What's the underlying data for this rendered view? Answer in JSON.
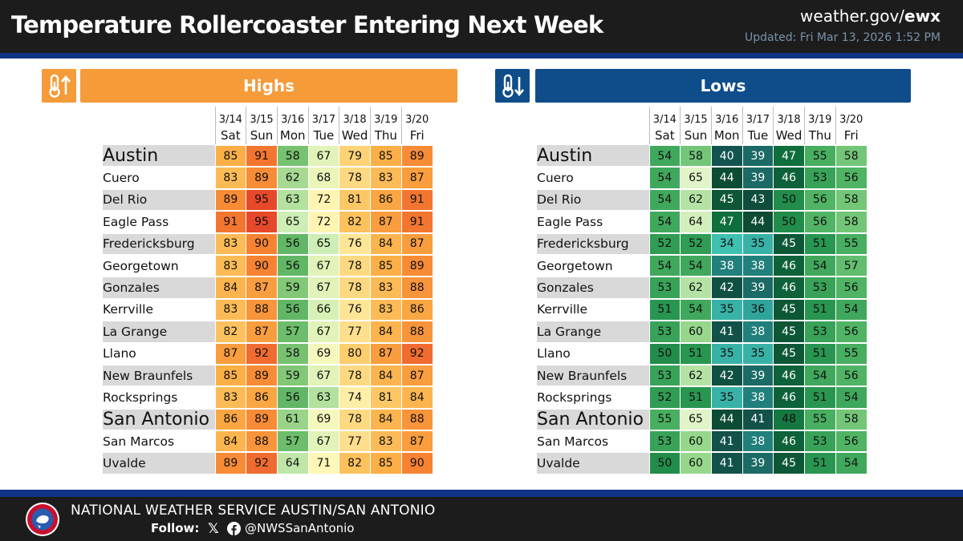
{
  "header": {
    "title": "Temperature Rollercoaster Entering Next Week",
    "site_prefix": "weather.gov/",
    "site_bold": "ewx",
    "updated": "Updated: Fri Mar 13, 2026 1:52 PM"
  },
  "highs_label": "Highs",
  "lows_label": "Lows",
  "icons": {
    "highs": "thermometer-up-icon",
    "lows": "thermometer-down-icon"
  },
  "dates": [
    "3/14",
    "3/15",
    "3/16",
    "3/17",
    "3/18",
    "3/19",
    "3/20"
  ],
  "days": [
    "Sat",
    "Sun",
    "Mon",
    "Tue",
    "Wed",
    "Thu",
    "Fri"
  ],
  "cities": [
    {
      "name": "Austin",
      "big": true,
      "highs": [
        85,
        91,
        58,
        67,
        79,
        85,
        89
      ],
      "lows": [
        54,
        58,
        40,
        39,
        47,
        55,
        58
      ]
    },
    {
      "name": "Cuero",
      "big": false,
      "highs": [
        83,
        89,
        62,
        68,
        78,
        83,
        87
      ],
      "lows": [
        54,
        65,
        44,
        39,
        46,
        53,
        56
      ]
    },
    {
      "name": "Del Rio",
      "big": false,
      "highs": [
        89,
        95,
        63,
        72,
        81,
        86,
        91
      ],
      "lows": [
        54,
        62,
        45,
        43,
        50,
        56,
        58
      ]
    },
    {
      "name": "Eagle Pass",
      "big": false,
      "highs": [
        91,
        95,
        65,
        72,
        82,
        87,
        91
      ],
      "lows": [
        54,
        64,
        47,
        44,
        50,
        56,
        58
      ]
    },
    {
      "name": "Fredericksburg",
      "big": false,
      "highs": [
        83,
        90,
        56,
        65,
        76,
        84,
        87
      ],
      "lows": [
        52,
        52,
        34,
        35,
        45,
        51,
        55
      ]
    },
    {
      "name": "Georgetown",
      "big": false,
      "highs": [
        83,
        90,
        56,
        67,
        78,
        85,
        89
      ],
      "lows": [
        54,
        54,
        38,
        38,
        46,
        54,
        57
      ]
    },
    {
      "name": "Gonzales",
      "big": false,
      "highs": [
        84,
        87,
        59,
        67,
        78,
        83,
        88
      ],
      "lows": [
        53,
        62,
        42,
        39,
        46,
        53,
        56
      ]
    },
    {
      "name": "Kerrville",
      "big": false,
      "highs": [
        83,
        88,
        56,
        66,
        76,
        83,
        86
      ],
      "lows": [
        51,
        54,
        35,
        36,
        45,
        51,
        54
      ]
    },
    {
      "name": "La Grange",
      "big": false,
      "highs": [
        82,
        87,
        57,
        67,
        77,
        84,
        88
      ],
      "lows": [
        53,
        60,
        41,
        38,
        45,
        53,
        56
      ]
    },
    {
      "name": "Llano",
      "big": false,
      "highs": [
        87,
        92,
        58,
        69,
        80,
        87,
        92
      ],
      "lows": [
        50,
        51,
        35,
        35,
        45,
        51,
        55
      ]
    },
    {
      "name": "New Braunfels",
      "big": false,
      "highs": [
        85,
        89,
        59,
        67,
        78,
        84,
        87
      ],
      "lows": [
        53,
        62,
        42,
        39,
        46,
        54,
        56
      ]
    },
    {
      "name": "Rocksprings",
      "big": false,
      "highs": [
        83,
        86,
        56,
        63,
        74,
        81,
        84
      ],
      "lows": [
        52,
        51,
        35,
        38,
        46,
        51,
        54
      ]
    },
    {
      "name": "San Antonio",
      "big": true,
      "highs": [
        86,
        89,
        61,
        69,
        78,
        84,
        88
      ],
      "lows": [
        55,
        65,
        44,
        41,
        48,
        55,
        58
      ]
    },
    {
      "name": "San Marcos",
      "big": false,
      "highs": [
        84,
        88,
        57,
        67,
        77,
        83,
        87
      ],
      "lows": [
        53,
        60,
        41,
        38,
        46,
        53,
        56
      ]
    },
    {
      "name": "Uvalde",
      "big": false,
      "highs": [
        89,
        92,
        64,
        71,
        82,
        85,
        90
      ],
      "lows": [
        50,
        60,
        41,
        39,
        45,
        51,
        54
      ]
    }
  ],
  "footer": {
    "org": "NATIONAL WEATHER SERVICE AUSTIN/SAN ANTONIO",
    "follow": "Follow:",
    "handle": "@NWSSanAntonio"
  },
  "colors": {
    "highs_accent": "#f59b3a",
    "lows_accent": "#0f4d8a",
    "rule_blue": "#0f3486",
    "header_bg": "#1c1c1c",
    "updated_text": "#7a93ac"
  }
}
